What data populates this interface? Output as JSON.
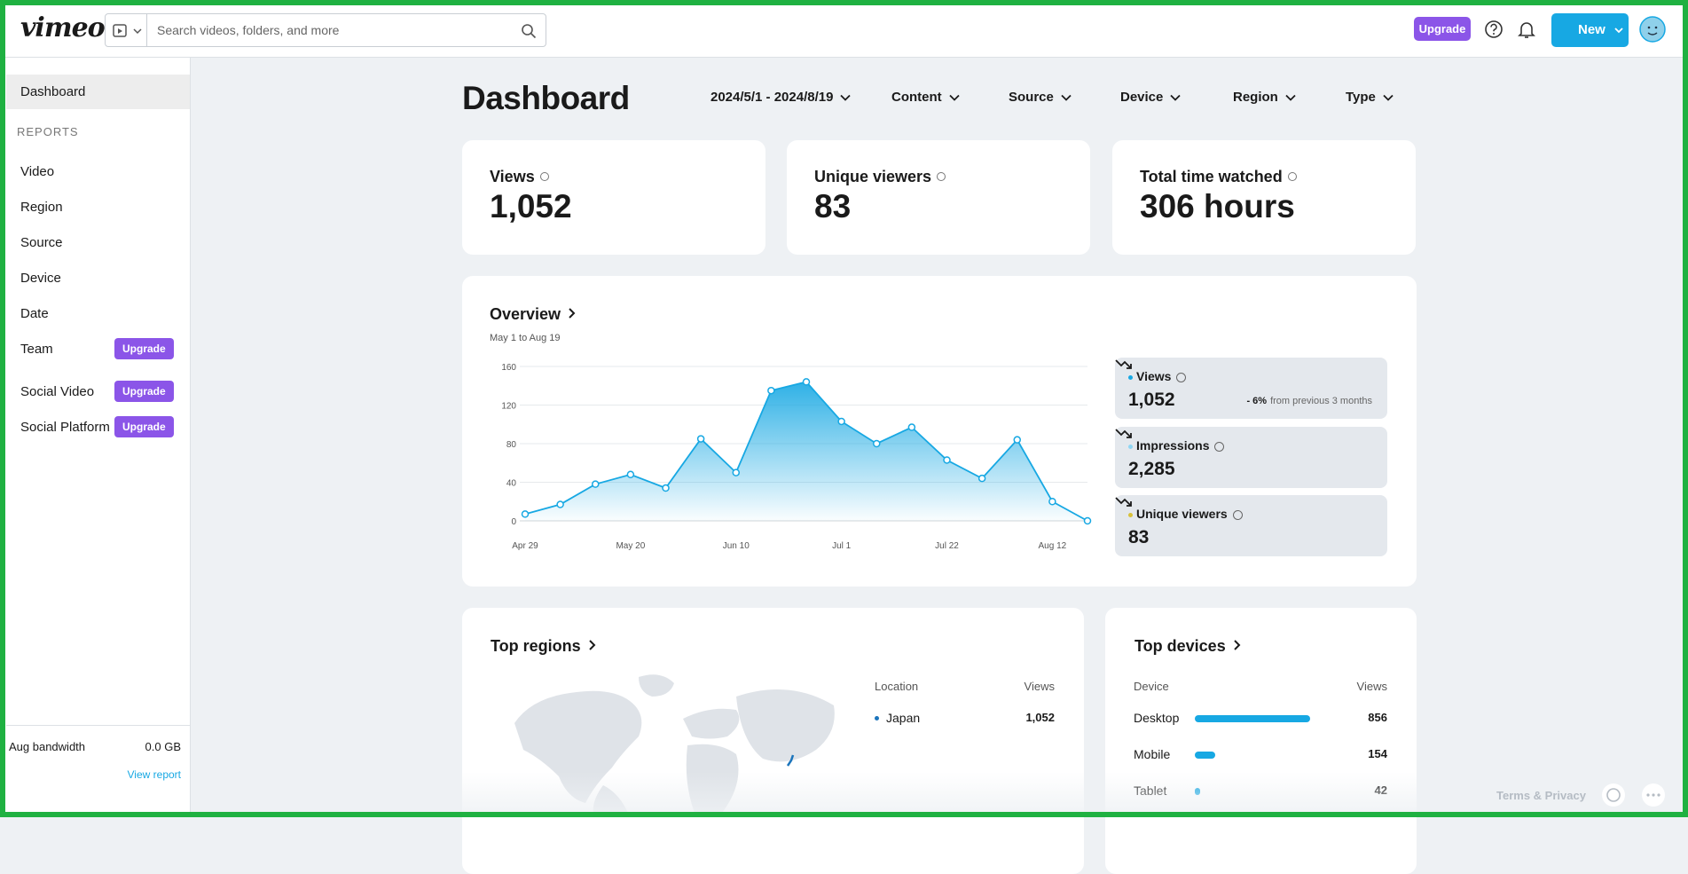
{
  "header": {
    "logo": "vimeo",
    "search_placeholder": "Search videos, folders, and more",
    "upgrade": "Upgrade",
    "new": "New"
  },
  "sidebar": {
    "dashboard": "Dashboard",
    "section": "REPORTS",
    "items": [
      {
        "label": "Video"
      },
      {
        "label": "Region"
      },
      {
        "label": "Source"
      },
      {
        "label": "Device"
      },
      {
        "label": "Date"
      },
      {
        "label": "Team",
        "badge": "Upgrade"
      },
      {
        "label": "Social Video",
        "badge": "Upgrade"
      },
      {
        "label": "Social Platform",
        "badge": "Upgrade"
      }
    ],
    "bandwidth_label": "Aug bandwidth",
    "bandwidth_value": "0.0 GB",
    "view_report": "View report"
  },
  "page": {
    "title": "Dashboard",
    "filters": [
      "2024/5/1 - 2024/8/19",
      "Content",
      "Source",
      "Device",
      "Region",
      "Type"
    ]
  },
  "stats": [
    {
      "label": "Views",
      "value": "1,052"
    },
    {
      "label": "Unique viewers",
      "value": "83"
    },
    {
      "label": "Total time watched",
      "value": "306 hours"
    }
  ],
  "overview": {
    "title": "Overview",
    "subtitle": "May 1 to Aug 19",
    "chart": {
      "type": "line",
      "categories": [
        "Apr 29",
        null,
        null,
        "May 20",
        null,
        null,
        "Jun 10",
        null,
        null,
        "Jul 1",
        null,
        null,
        "Jul 22",
        null,
        null,
        "Aug 12",
        null
      ],
      "values": [
        7,
        17,
        38,
        48,
        34,
        85,
        50,
        135,
        144,
        103,
        80,
        97,
        63,
        44,
        84,
        20,
        0
      ],
      "ylim": [
        0,
        160
      ],
      "yticks": [
        0,
        40,
        80,
        120,
        160
      ],
      "color": "#17a8e3",
      "grid": true
    },
    "metrics": [
      {
        "label": "Views",
        "value": "1,052",
        "dot": "#17a8e3",
        "change": "- 6%",
        "change_note": "from previous 3 months"
      },
      {
        "label": "Impressions",
        "value": "2,285",
        "dot": "#8fd6f4"
      },
      {
        "label": "Unique viewers",
        "value": "83",
        "dot": "#d8c13a"
      }
    ]
  },
  "top_regions": {
    "title": "Top regions",
    "columns": [
      "Location",
      "Views"
    ],
    "rows": [
      {
        "location": "Japan",
        "views": "1,052"
      }
    ]
  },
  "top_devices": {
    "title": "Top devices",
    "columns": [
      "Device",
      "Views"
    ],
    "chart": {
      "type": "bar",
      "categories": [
        "Desktop",
        "Mobile",
        "Tablet"
      ],
      "values": [
        856,
        154,
        42
      ],
      "color": "#17a8e3"
    }
  },
  "footer": {
    "terms": "Terms & Privacy"
  }
}
